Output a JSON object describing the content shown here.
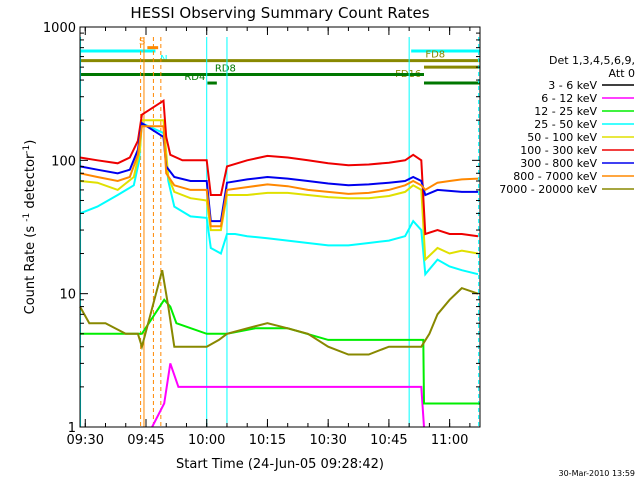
{
  "chart_data": {
    "type": "line",
    "title": "HESSI Observing Summary Count Rates",
    "xlabel": "Start Time (24-Jun-05 09:28:42)",
    "ylabel": "Count Rate (s-1 detector-1)",
    "yscale": "log",
    "ylim": [
      1,
      1000
    ],
    "xlim": [
      "09:28:42",
      "11:07:30"
    ],
    "x_ticks": [
      "09:30",
      "09:45",
      "10:00",
      "10:15",
      "10:30",
      "10:45",
      "11:00"
    ],
    "y_ticks": [
      "1",
      "10",
      "100",
      "1000"
    ],
    "footer_date": "30-Mar-2010 13:59",
    "legend": {
      "header": [
        "Det 1,3,4,5,6,9,",
        "Att 0"
      ],
      "placement": "right",
      "entries": [
        {
          "label": "3 - 6 keV",
          "color": "#000000"
        },
        {
          "label": "6 - 12 keV",
          "color": "#ff00ff"
        },
        {
          "label": "12 - 25 keV",
          "color": "#00ee00"
        },
        {
          "label": "25 - 50 keV",
          "color": "#00ffff"
        },
        {
          "label": "50 - 100 keV",
          "color": "#e0e000"
        },
        {
          "label": "100 - 300 keV",
          "color": "#ee0000"
        },
        {
          "label": "300 - 800 keV",
          "color": "#0000ee"
        },
        {
          "label": "800 - 7000 keV",
          "color": "#ff8800"
        },
        {
          "label": "7000 - 20000 keV",
          "color": "#888800"
        }
      ]
    },
    "flag_bars": [
      {
        "label": "S",
        "color": "#ff8800",
        "y": 700,
        "segments": [
          [
            "09:45:20",
            "09:48:00"
          ]
        ]
      },
      {
        "label": "N",
        "color": "#00ffff",
        "y": 660,
        "segments": [
          [
            "09:28:42",
            "09:47:20"
          ],
          [
            "10:50:30",
            "11:07:30"
          ]
        ]
      },
      {
        "label": "",
        "color": "#888800",
        "y": 560,
        "segments": [
          [
            "09:28:42",
            "10:53:40"
          ]
        ]
      },
      {
        "label": "FD8",
        "color": "#888800",
        "y": 560,
        "segments": [
          [
            "10:53:40",
            "11:07:30"
          ]
        ]
      },
      {
        "label": "FD16",
        "color": "#888800",
        "y": 500,
        "segments": [
          [
            "10:53:40",
            "11:07:30"
          ]
        ]
      },
      {
        "label": "",
        "color": "#007700",
        "y": 440,
        "segments": [
          [
            "09:28:42",
            "10:53:40"
          ]
        ]
      },
      {
        "label": "RD8",
        "color": "#007700",
        "y": 440,
        "segments": []
      },
      {
        "label": "RD4",
        "color": "#007700",
        "y": 380,
        "segments": [
          [
            "10:00:10",
            "10:02:30"
          ],
          [
            "10:53:40",
            "11:07:30"
          ]
        ]
      }
    ],
    "series": [
      {
        "name": "3 - 6 keV",
        "color": "#000000",
        "points": [
          [
            "09:52:00",
            1.0
          ]
        ]
      },
      {
        "name": "6 - 12 keV",
        "color": "#ff00ff",
        "points": [
          [
            "09:46:30",
            1.0
          ],
          [
            "09:49:30",
            1.5
          ],
          [
            "09:51:00",
            3.0
          ],
          [
            "09:53:00",
            2.0
          ],
          [
            "10:00:00",
            2.0
          ],
          [
            "10:30:00",
            2.0
          ],
          [
            "10:53:00",
            2.0
          ],
          [
            "10:53:40",
            1.0
          ]
        ]
      },
      {
        "name": "12 - 25 keV",
        "color": "#00ee00",
        "points": [
          [
            "09:28:42",
            5.0
          ],
          [
            "09:35:00",
            5.0
          ],
          [
            "09:42:00",
            5.0
          ],
          [
            "09:44:00",
            5.0
          ],
          [
            "09:49:30",
            9.0
          ],
          [
            "09:51:00",
            8.0
          ],
          [
            "09:52:30",
            6.0
          ],
          [
            "10:00:00",
            5.0
          ],
          [
            "10:05:00",
            5.0
          ],
          [
            "10:12:00",
            5.5
          ],
          [
            "10:20:00",
            5.5
          ],
          [
            "10:30:00",
            4.5
          ],
          [
            "10:40:00",
            4.5
          ],
          [
            "10:50:00",
            4.5
          ],
          [
            "10:53:30",
            4.5
          ],
          [
            "10:53:40",
            1.5
          ],
          [
            "11:07:30",
            1.5
          ]
        ]
      },
      {
        "name": "25 - 50 keV",
        "color": "#00ffff",
        "points": [
          [
            "09:28:42",
            40
          ],
          [
            "09:33:00",
            45
          ],
          [
            "09:38:00",
            55
          ],
          [
            "09:42:00",
            65
          ],
          [
            "09:43:20",
            100
          ],
          [
            "09:44:00",
            190
          ],
          [
            "09:49:20",
            160
          ],
          [
            "09:50:30",
            70
          ],
          [
            "09:52:00",
            45
          ],
          [
            "09:56:00",
            38
          ],
          [
            "10:00:00",
            37
          ],
          [
            "10:01:00",
            22
          ],
          [
            "10:03:30",
            20
          ],
          [
            "10:05:00",
            28
          ],
          [
            "10:07:00",
            28
          ],
          [
            "10:10:00",
            27
          ],
          [
            "10:15:00",
            26
          ],
          [
            "10:20:00",
            25
          ],
          [
            "10:25:00",
            24
          ],
          [
            "10:30:00",
            23
          ],
          [
            "10:35:00",
            23
          ],
          [
            "10:40:00",
            24
          ],
          [
            "10:45:00",
            25
          ],
          [
            "10:49:00",
            27
          ],
          [
            "10:51:00",
            35
          ],
          [
            "10:53:00",
            30
          ],
          [
            "10:54:00",
            14
          ],
          [
            "10:57:00",
            18
          ],
          [
            "11:00:00",
            16
          ],
          [
            "11:03:00",
            15
          ],
          [
            "11:07:00",
            14
          ]
        ]
      },
      {
        "name": "50 - 100 keV",
        "color": "#e0e000",
        "points": [
          [
            "09:28:42",
            70
          ],
          [
            "09:33:00",
            68
          ],
          [
            "09:38:00",
            60
          ],
          [
            "09:42:00",
            75
          ],
          [
            "09:43:30",
            120
          ],
          [
            "09:44:00",
            200
          ],
          [
            "09:49:20",
            200
          ],
          [
            "09:50:30",
            75
          ],
          [
            "09:52:00",
            58
          ],
          [
            "09:56:00",
            52
          ],
          [
            "10:00:00",
            50
          ],
          [
            "10:01:00",
            30
          ],
          [
            "10:03:30",
            30
          ],
          [
            "10:05:00",
            55
          ],
          [
            "10:10:00",
            55
          ],
          [
            "10:15:00",
            57
          ],
          [
            "10:20:00",
            57
          ],
          [
            "10:25:00",
            55
          ],
          [
            "10:30:00",
            53
          ],
          [
            "10:35:00",
            52
          ],
          [
            "10:40:00",
            52
          ],
          [
            "10:45:00",
            54
          ],
          [
            "10:49:00",
            58
          ],
          [
            "10:51:00",
            65
          ],
          [
            "10:53:00",
            60
          ],
          [
            "10:54:00",
            18
          ],
          [
            "10:57:00",
            22
          ],
          [
            "11:00:00",
            20
          ],
          [
            "11:03:00",
            21
          ],
          [
            "11:07:00",
            20
          ]
        ]
      },
      {
        "name": "100 - 300 keV",
        "color": "#ee0000",
        "points": [
          [
            "09:28:42",
            105
          ],
          [
            "09:33:00",
            100
          ],
          [
            "09:38:00",
            95
          ],
          [
            "09:41:00",
            105
          ],
          [
            "09:43:00",
            140
          ],
          [
            "09:44:00",
            220
          ],
          [
            "09:49:20",
            280
          ],
          [
            "09:50:00",
            150
          ],
          [
            "09:51:00",
            110
          ],
          [
            "09:54:00",
            100
          ],
          [
            "10:00:00",
            100
          ],
          [
            "10:01:00",
            55
          ],
          [
            "10:03:30",
            55
          ],
          [
            "10:05:00",
            90
          ],
          [
            "10:10:00",
            100
          ],
          [
            "10:15:00",
            108
          ],
          [
            "10:20:00",
            105
          ],
          [
            "10:25:00",
            100
          ],
          [
            "10:30:00",
            95
          ],
          [
            "10:35:00",
            92
          ],
          [
            "10:40:00",
            93
          ],
          [
            "10:45:00",
            96
          ],
          [
            "10:49:00",
            100
          ],
          [
            "10:51:00",
            110
          ],
          [
            "10:53:00",
            100
          ],
          [
            "10:54:00",
            28
          ],
          [
            "10:57:00",
            30
          ],
          [
            "11:00:00",
            28
          ],
          [
            "11:03:00",
            28
          ],
          [
            "11:07:00",
            27
          ]
        ]
      },
      {
        "name": "300 - 800 keV",
        "color": "#0000ee",
        "points": [
          [
            "09:28:42",
            90
          ],
          [
            "09:33:00",
            85
          ],
          [
            "09:38:00",
            80
          ],
          [
            "09:41:00",
            85
          ],
          [
            "09:43:00",
            120
          ],
          [
            "09:44:00",
            190
          ],
          [
            "09:49:20",
            150
          ],
          [
            "09:50:00",
            90
          ],
          [
            "09:52:00",
            75
          ],
          [
            "09:56:00",
            70
          ],
          [
            "10:00:00",
            70
          ],
          [
            "10:01:00",
            35
          ],
          [
            "10:03:30",
            35
          ],
          [
            "10:05:00",
            68
          ],
          [
            "10:10:00",
            72
          ],
          [
            "10:15:00",
            75
          ],
          [
            "10:20:00",
            73
          ],
          [
            "10:25:00",
            70
          ],
          [
            "10:30:00",
            67
          ],
          [
            "10:35:00",
            65
          ],
          [
            "10:40:00",
            66
          ],
          [
            "10:45:00",
            68
          ],
          [
            "10:49:00",
            70
          ],
          [
            "10:51:00",
            75
          ],
          [
            "10:53:00",
            70
          ],
          [
            "10:54:00",
            55
          ],
          [
            "10:57:00",
            60
          ],
          [
            "11:00:00",
            59
          ],
          [
            "11:03:00",
            58
          ],
          [
            "11:07:00",
            58
          ]
        ]
      },
      {
        "name": "800 - 7000 keV",
        "color": "#ff8800",
        "points": [
          [
            "09:28:42",
            80
          ],
          [
            "09:33:00",
            75
          ],
          [
            "09:38:00",
            70
          ],
          [
            "09:41:00",
            75
          ],
          [
            "09:43:00",
            110
          ],
          [
            "09:44:00",
            180
          ],
          [
            "09:49:20",
            180
          ],
          [
            "09:50:00",
            80
          ],
          [
            "09:52:00",
            65
          ],
          [
            "09:56:00",
            60
          ],
          [
            "10:00:00",
            60
          ],
          [
            "10:01:00",
            32
          ],
          [
            "10:03:30",
            32
          ],
          [
            "10:05:00",
            60
          ],
          [
            "10:10:00",
            63
          ],
          [
            "10:15:00",
            66
          ],
          [
            "10:20:00",
            64
          ],
          [
            "10:25:00",
            60
          ],
          [
            "10:30:00",
            58
          ],
          [
            "10:35:00",
            56
          ],
          [
            "10:40:00",
            57
          ],
          [
            "10:45:00",
            60
          ],
          [
            "10:49:00",
            65
          ],
          [
            "10:51:00",
            70
          ],
          [
            "10:53:00",
            65
          ],
          [
            "10:54:00",
            60
          ],
          [
            "10:57:00",
            68
          ],
          [
            "11:00:00",
            70
          ],
          [
            "11:03:00",
            72
          ],
          [
            "11:07:00",
            73
          ]
        ]
      },
      {
        "name": "7000 - 20000 keV",
        "color": "#888800",
        "points": [
          [
            "09:28:42",
            8
          ],
          [
            "09:31:00",
            6
          ],
          [
            "09:35:00",
            6
          ],
          [
            "09:40:00",
            5
          ],
          [
            "09:43:00",
            5
          ],
          [
            "09:44:00",
            4
          ],
          [
            "09:49:00",
            15
          ],
          [
            "09:50:30",
            8
          ],
          [
            "09:52:00",
            4
          ],
          [
            "10:00:00",
            4
          ],
          [
            "10:03:00",
            4.5
          ],
          [
            "10:05:00",
            5
          ],
          [
            "10:10:00",
            5.5
          ],
          [
            "10:15:00",
            6
          ],
          [
            "10:20:00",
            5.5
          ],
          [
            "10:25:00",
            5
          ],
          [
            "10:30:00",
            4
          ],
          [
            "10:35:00",
            3.5
          ],
          [
            "10:40:00",
            3.5
          ],
          [
            "10:45:00",
            4
          ],
          [
            "10:50:00",
            4
          ],
          [
            "10:53:00",
            4
          ],
          [
            "10:55:00",
            5
          ],
          [
            "10:57:00",
            7
          ],
          [
            "11:00:00",
            9
          ],
          [
            "11:03:00",
            11
          ],
          [
            "11:07:00",
            10
          ]
        ]
      }
    ]
  }
}
